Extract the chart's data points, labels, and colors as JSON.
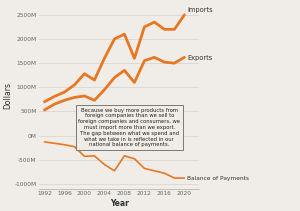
{
  "years": [
    1992,
    1994,
    1996,
    1998,
    2000,
    2002,
    2004,
    2006,
    2008,
    2010,
    2012,
    2014,
    2016,
    2018,
    2020
  ],
  "imports": [
    700,
    810,
    900,
    1050,
    1280,
    1150,
    1600,
    2000,
    2100,
    1600,
    2250,
    2350,
    2200,
    2200,
    2500
  ],
  "exports": [
    530,
    650,
    730,
    790,
    820,
    730,
    950,
    1200,
    1350,
    1100,
    1550,
    1620,
    1520,
    1500,
    1620
  ],
  "bop": [
    -130,
    -160,
    -190,
    -230,
    -430,
    -420,
    -600,
    -730,
    -420,
    -480,
    -680,
    -730,
    -780,
    -880,
    -880
  ],
  "line_color": "#E87722",
  "bg_color": "#f0ede8",
  "text_color": "#333333",
  "annotation_text": "Because we buy more products from\nforeign companies than we sell to\nforeign companies and consumers, we\nmust import more than we export.\nThe gap between what we spend and\nwhat we take in is reflected in our\nnational balance of payments.",
  "xlabel": "Year",
  "ylabel": "Dollars",
  "yticks": [
    -1000,
    -500,
    0,
    500,
    1000,
    1500,
    2000,
    2500
  ],
  "ytick_labels": [
    "-1000M",
    "-500M",
    "0M",
    "500M",
    "1000M",
    "1500M",
    "2000M",
    "2500M"
  ],
  "xticks": [
    1992,
    1996,
    2000,
    2004,
    2008,
    2012,
    2016,
    2020
  ],
  "xlim": [
    1991,
    2023
  ],
  "ylim": [
    -1100,
    2750
  ]
}
